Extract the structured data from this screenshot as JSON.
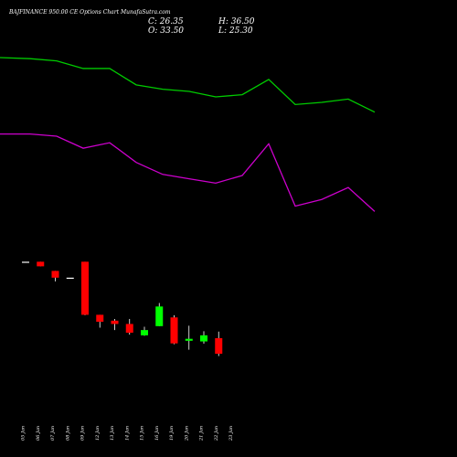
{
  "header": {
    "title": "BAJFINANCE 950.00 CE Options Chart MunafaSutra.com",
    "close": "C: 26.35",
    "high": "H: 36.50",
    "open": "O: 33.50",
    "low": "L: 25.30"
  },
  "colors": {
    "background": "#000000",
    "bullish": "#00ff00",
    "bearish": "#ff0000",
    "neutral": "#ffffff",
    "upper_band": "#00cc00",
    "lower_band": "#cc00cc"
  },
  "chart_data": {
    "type": "candlestick",
    "title": "BAJFINANCE 950.00 CE Options Chart MunafaSutra.com",
    "categories": [
      "05 Jan",
      "06 Jan",
      "07 Jan",
      "08 Jan",
      "09 Jan",
      "12 Jan",
      "13 Jan",
      "14 Jan",
      "15 Jan",
      "16 Jan",
      "19 Jan",
      "20 Jan",
      "21 Jan",
      "22 Jan",
      "23 Jan"
    ],
    "candles": [
      {
        "date": "05 Jan",
        "open": 68.5,
        "high": 68.5,
        "low": 68.5,
        "close": 68.5
      },
      {
        "date": "06 Jan",
        "open": 68.5,
        "high": 68.5,
        "low": 66.4,
        "close": 66.4
      },
      {
        "date": "07 Jan",
        "open": 64.3,
        "high": 64.3,
        "low": 59.5,
        "close": 61.2
      },
      {
        "date": "08 Jan",
        "open": 61.2,
        "high": 61.2,
        "low": 61.2,
        "close": 61.2
      },
      {
        "date": "09 Jan",
        "open": 68.5,
        "high": 68.5,
        "low": 44.0,
        "close": 44.2
      },
      {
        "date": "12 Jan",
        "open": 44.2,
        "high": 44.2,
        "low": 38.3,
        "close": 41.0
      },
      {
        "date": "13 Jan",
        "open": 41.5,
        "high": 42.3,
        "low": 37.2,
        "close": 40.0
      },
      {
        "date": "14 Jan",
        "open": 40.0,
        "high": 42.3,
        "low": 35.1,
        "close": 36.0
      },
      {
        "date": "15 Jan",
        "open": 34.8,
        "high": 38.7,
        "low": 34.6,
        "close": 37.2
      },
      {
        "date": "16 Jan",
        "open": 39.0,
        "high": 49.6,
        "low": 39.0,
        "close": 48.0
      },
      {
        "date": "19 Jan",
        "open": 43.0,
        "high": 44.0,
        "low": 30.7,
        "close": 31.1
      },
      {
        "date": "20 Jan",
        "open": 32.3,
        "high": 39.2,
        "low": 28.2,
        "close": 33.2
      },
      {
        "date": "21 Jan",
        "open": 32.0,
        "high": 36.7,
        "low": 31.0,
        "close": 34.8
      },
      {
        "date": "22 Jan",
        "open": 33.5,
        "high": 36.5,
        "low": 25.3,
        "close": 26.35
      }
    ],
    "upper_band": [
      162,
      161.5,
      160.5,
      157,
      157,
      149.5,
      147.5,
      146.5,
      144,
      145,
      152,
      140.5,
      141.5,
      143,
      137
    ],
    "lower_band": [
      127,
      127,
      126,
      120.5,
      123,
      114,
      108.5,
      106.5,
      104.5,
      108,
      122.5,
      94,
      97,
      102.5,
      91.5
    ],
    "ylim": [
      0,
      180
    ]
  }
}
